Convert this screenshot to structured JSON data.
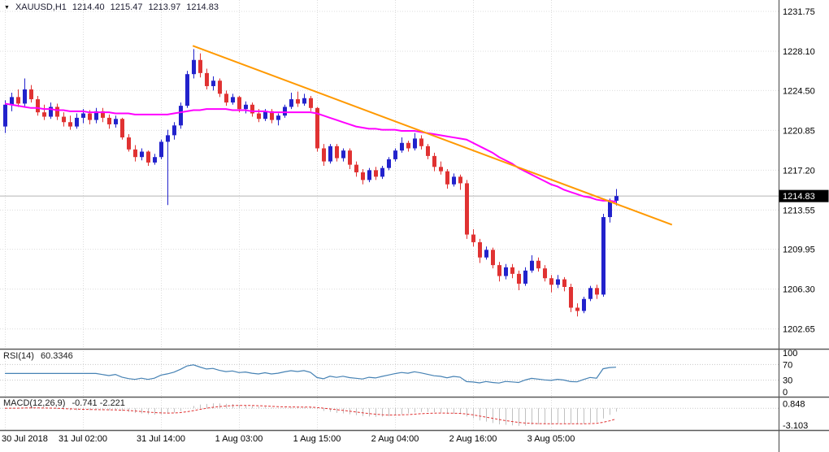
{
  "titlebar": {
    "symbol": "XAUUSD,H1",
    "open": "1214.40",
    "high": "1215.47",
    "low": "1213.97",
    "close": "1214.83"
  },
  "colors": {
    "bull": "#2222cc",
    "bear": "#e03232",
    "grid": "#dcdcdc",
    "level": "#c8c8c8",
    "ma": "#ff00ff",
    "trendline": "#ff9900",
    "rsi": "#4682b4",
    "macd_hist": "#c0c0c0",
    "macd_signal": "#e03030",
    "current_price_line": "#b4b4b4",
    "badge_bg": "#000000",
    "badge_text": "#ffffff",
    "axis_text": "#000000",
    "separator": "#5a5a5a"
  },
  "chart_data": [
    {
      "type": "candlestick",
      "title": "XAUUSD,H1",
      "timeframe": "H1",
      "ylim": [
        1202.65,
        1231.75
      ],
      "grid": true,
      "y_ticks": [
        "1231.75",
        "1228.10",
        "1224.50",
        "1220.85",
        "1217.20",
        "1213.55",
        "1209.95",
        "1206.30",
        "1202.65"
      ],
      "x_ticks": [
        {
          "index": 0,
          "label": "30 Jul 2018"
        },
        {
          "index": 12,
          "label": "31 Jul 02:00"
        },
        {
          "index": 24,
          "label": "31 Jul 14:00"
        },
        {
          "index": 36,
          "label": "1 Aug 03:00"
        },
        {
          "index": 48,
          "label": "1 Aug 15:00"
        },
        {
          "index": 60,
          "label": "2 Aug 04:00"
        },
        {
          "index": 72,
          "label": "2 Aug 16:00"
        },
        {
          "index": 84,
          "label": "3 Aug 05:00"
        }
      ],
      "current_price": 1214.83,
      "current_price_label": "1214.83",
      "candles": [
        [
          1221.2,
          1223.6,
          1220.6,
          1223.2
        ],
        [
          1223.2,
          1224.3,
          1222.6,
          1223.9
        ],
        [
          1223.9,
          1224.6,
          1223.0,
          1223.3
        ],
        [
          1223.3,
          1225.6,
          1223.0,
          1224.6
        ],
        [
          1224.6,
          1225.0,
          1223.4,
          1223.7
        ],
        [
          1223.7,
          1224.0,
          1222.2,
          1222.5
        ],
        [
          1222.5,
          1223.2,
          1221.8,
          1222.1
        ],
        [
          1222.1,
          1223.4,
          1221.9,
          1223.0
        ],
        [
          1223.0,
          1223.3,
          1221.8,
          1222.1
        ],
        [
          1222.1,
          1222.5,
          1221.2,
          1221.6
        ],
        [
          1221.6,
          1222.2,
          1220.9,
          1221.2
        ],
        [
          1221.2,
          1222.4,
          1221.0,
          1222.0
        ],
        [
          1222.0,
          1222.8,
          1221.5,
          1222.4
        ],
        [
          1222.4,
          1222.7,
          1221.4,
          1221.8
        ],
        [
          1221.8,
          1222.9,
          1221.5,
          1222.6
        ],
        [
          1222.6,
          1222.9,
          1221.6,
          1222.0
        ],
        [
          1222.0,
          1222.3,
          1221.0,
          1221.4
        ],
        [
          1221.4,
          1222.2,
          1221.1,
          1221.9
        ],
        [
          1221.9,
          1222.0,
          1220.0,
          1220.2
        ],
        [
          1220.2,
          1220.5,
          1218.9,
          1219.1
        ],
        [
          1219.1,
          1219.5,
          1218.0,
          1218.4
        ],
        [
          1218.4,
          1219.2,
          1218.1,
          1218.9
        ],
        [
          1218.9,
          1219.0,
          1217.6,
          1217.9
        ],
        [
          1217.9,
          1218.7,
          1217.7,
          1218.4
        ],
        [
          1218.4,
          1220.0,
          1218.2,
          1219.8
        ],
        [
          1219.8,
          1220.9,
          1214.0,
          1220.4
        ],
        [
          1220.4,
          1221.6,
          1220.0,
          1221.3
        ],
        [
          1221.3,
          1223.4,
          1221.0,
          1223.1
        ],
        [
          1223.1,
          1226.3,
          1222.9,
          1226.0
        ],
        [
          1226.0,
          1228.3,
          1225.6,
          1227.3
        ],
        [
          1227.3,
          1227.9,
          1225.7,
          1226.1
        ],
        [
          1226.1,
          1226.5,
          1224.6,
          1224.9
        ],
        [
          1224.9,
          1225.8,
          1224.5,
          1225.4
        ],
        [
          1225.4,
          1225.6,
          1223.9,
          1224.2
        ],
        [
          1224.2,
          1224.5,
          1223.1,
          1223.4
        ],
        [
          1223.4,
          1224.2,
          1223.2,
          1223.9
        ],
        [
          1223.9,
          1224.0,
          1222.5,
          1222.8
        ],
        [
          1222.8,
          1223.5,
          1222.4,
          1223.2
        ],
        [
          1223.2,
          1223.4,
          1222.1,
          1222.4
        ],
        [
          1222.4,
          1222.8,
          1221.6,
          1221.9
        ],
        [
          1221.9,
          1222.8,
          1221.7,
          1222.6
        ],
        [
          1222.6,
          1222.8,
          1221.5,
          1221.8
        ],
        [
          1221.8,
          1222.4,
          1221.3,
          1222.2
        ],
        [
          1222.2,
          1223.2,
          1222.0,
          1223.0
        ],
        [
          1223.0,
          1224.3,
          1222.8,
          1223.7
        ],
        [
          1223.7,
          1224.4,
          1223.0,
          1223.3
        ],
        [
          1223.3,
          1224.2,
          1223.1,
          1223.8
        ],
        [
          1223.8,
          1224.0,
          1222.6,
          1222.9
        ],
        [
          1222.9,
          1223.0,
          1218.9,
          1219.2
        ],
        [
          1219.2,
          1219.6,
          1217.6,
          1218.0
        ],
        [
          1218.0,
          1219.6,
          1217.8,
          1219.4
        ],
        [
          1219.4,
          1219.6,
          1218.0,
          1218.3
        ],
        [
          1218.3,
          1219.2,
          1218.0,
          1219.0
        ],
        [
          1219.0,
          1219.2,
          1217.3,
          1217.7
        ],
        [
          1217.7,
          1218.0,
          1216.6,
          1217.0
        ],
        [
          1217.0,
          1217.3,
          1215.9,
          1216.3
        ],
        [
          1216.3,
          1217.4,
          1216.1,
          1217.2
        ],
        [
          1217.2,
          1217.5,
          1216.3,
          1216.6
        ],
        [
          1216.6,
          1217.6,
          1216.4,
          1217.4
        ],
        [
          1217.4,
          1218.4,
          1217.2,
          1218.2
        ],
        [
          1218.2,
          1219.2,
          1218.0,
          1219.0
        ],
        [
          1219.0,
          1220.2,
          1218.8,
          1219.7
        ],
        [
          1219.7,
          1219.9,
          1218.9,
          1219.2
        ],
        [
          1219.2,
          1220.6,
          1219.0,
          1220.1
        ],
        [
          1220.1,
          1220.4,
          1219.1,
          1219.4
        ],
        [
          1219.4,
          1219.6,
          1218.2,
          1218.5
        ],
        [
          1218.5,
          1218.8,
          1217.1,
          1217.5
        ],
        [
          1217.5,
          1218.0,
          1216.8,
          1217.1
        ],
        [
          1217.1,
          1217.3,
          1215.5,
          1215.9
        ],
        [
          1215.9,
          1216.9,
          1215.7,
          1216.6
        ],
        [
          1216.6,
          1216.8,
          1215.4,
          1216.0
        ],
        [
          1216.0,
          1216.3,
          1210.9,
          1211.3
        ],
        [
          1211.3,
          1211.8,
          1210.2,
          1210.6
        ],
        [
          1210.6,
          1210.9,
          1208.7,
          1209.2
        ],
        [
          1209.2,
          1210.2,
          1209.0,
          1209.9
        ],
        [
          1209.9,
          1210.1,
          1208.2,
          1208.5
        ],
        [
          1208.5,
          1208.8,
          1207.0,
          1207.5
        ],
        [
          1207.5,
          1208.6,
          1207.2,
          1208.3
        ],
        [
          1208.3,
          1208.6,
          1207.3,
          1207.7
        ],
        [
          1207.7,
          1208.0,
          1206.2,
          1206.8
        ],
        [
          1206.8,
          1208.3,
          1206.6,
          1208.0
        ],
        [
          1208.0,
          1209.4,
          1207.8,
          1208.9
        ],
        [
          1208.9,
          1209.2,
          1207.9,
          1208.2
        ],
        [
          1208.2,
          1208.5,
          1207.0,
          1207.3
        ],
        [
          1207.3,
          1207.6,
          1206.0,
          1206.7
        ],
        [
          1206.7,
          1207.6,
          1206.4,
          1207.2
        ],
        [
          1207.2,
          1207.4,
          1206.1,
          1206.5
        ],
        [
          1206.5,
          1206.8,
          1204.2,
          1204.6
        ],
        [
          1204.6,
          1205.0,
          1203.8,
          1204.3
        ],
        [
          1204.3,
          1205.6,
          1204.1,
          1205.4
        ],
        [
          1205.4,
          1206.6,
          1205.2,
          1206.4
        ],
        [
          1206.4,
          1206.7,
          1205.4,
          1205.8
        ],
        [
          1205.8,
          1213.2,
          1205.6,
          1212.9
        ],
        [
          1212.9,
          1214.6,
          1212.4,
          1214.4
        ],
        [
          1214.4,
          1215.47,
          1213.97,
          1214.83
        ]
      ],
      "ma": {
        "values": [
          1223.3,
          1223.2,
          1223.1,
          1223.0,
          1222.9,
          1222.9,
          1222.8,
          1222.8,
          1222.7,
          1222.7,
          1222.6,
          1222.6,
          1222.6,
          1222.5,
          1222.5,
          1222.5,
          1222.5,
          1222.4,
          1222.4,
          1222.4,
          1222.3,
          1222.3,
          1222.3,
          1222.3,
          1222.3,
          1222.3,
          1222.4,
          1222.5,
          1222.6,
          1222.7,
          1222.7,
          1222.8,
          1222.8,
          1222.8,
          1222.8,
          1222.7,
          1222.7,
          1222.7,
          1222.6,
          1222.6,
          1222.6,
          1222.5,
          1222.5,
          1222.5,
          1222.5,
          1222.5,
          1222.5,
          1222.5,
          1222.4,
          1222.2,
          1222.0,
          1221.8,
          1221.6,
          1221.4,
          1221.2,
          1221.1,
          1221.0,
          1221.0,
          1220.9,
          1220.9,
          1220.9,
          1220.8,
          1220.8,
          1220.8,
          1220.7,
          1220.6,
          1220.5,
          1220.4,
          1220.3,
          1220.2,
          1220.1,
          1220.0,
          1219.7,
          1219.4,
          1219.1,
          1218.8,
          1218.4,
          1218.1,
          1217.8,
          1217.4,
          1217.1,
          1216.8,
          1216.5,
          1216.2,
          1215.9,
          1215.7,
          1215.4,
          1215.2,
          1215.0,
          1214.8,
          1214.7,
          1214.5,
          1214.4,
          1214.4,
          1214.3
        ]
      },
      "trendline": {
        "from": {
          "index": 28.9,
          "price": 1228.6
        },
        "to": {
          "index": 102.6,
          "price": 1212.2
        }
      }
    },
    {
      "type": "line",
      "name": "RSI(14)",
      "period": 14,
      "value_label": "60.3346",
      "value": 60.3346,
      "range": [
        0,
        100
      ],
      "levels": [
        100,
        70,
        30,
        0
      ],
      "level_lines": [
        70,
        30
      ]
    },
    {
      "type": "macd",
      "name": "MACD(12,26,9)",
      "params": [
        12,
        26,
        9
      ],
      "values_label": "-0.741 -2.221",
      "macd_value": -0.741,
      "signal_value": -2.221,
      "scale_max": 0.848,
      "scale_max_label": "0.848",
      "scale_min": -3.103,
      "scale_min_label": "-3.103"
    }
  ]
}
